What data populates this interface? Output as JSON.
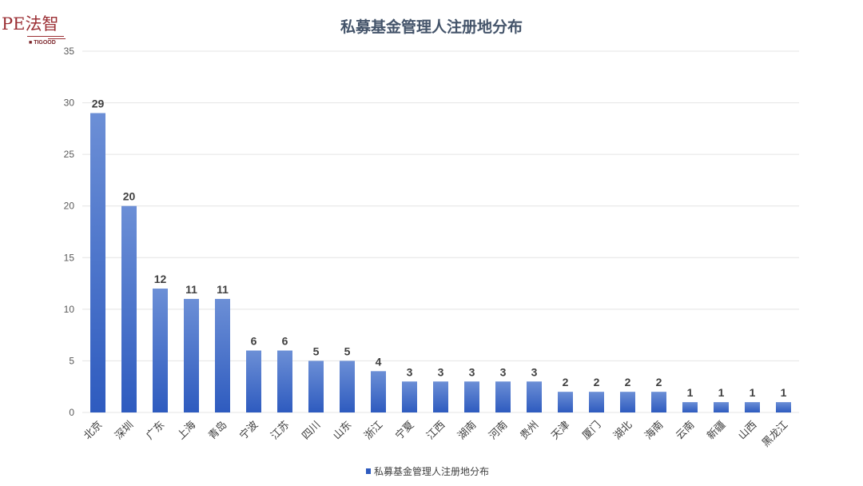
{
  "logo": {
    "text": "PE法智",
    "subtext": "TIGOOD"
  },
  "chart_data": {
    "type": "bar",
    "title": "私募基金管理人注册地分布",
    "categories": [
      "北京",
      "深圳",
      "广东",
      "上海",
      "青岛",
      "宁波",
      "江苏",
      "四川",
      "山东",
      "浙江",
      "宁夏",
      "江西",
      "湖南",
      "河南",
      "贵州",
      "天津",
      "厦门",
      "湖北",
      "海南",
      "云南",
      "新疆",
      "山西",
      "黑龙江"
    ],
    "series": [
      {
        "name": "私募基金管理人注册地分布",
        "values": [
          29,
          20,
          12,
          11,
          11,
          6,
          6,
          5,
          5,
          4,
          3,
          3,
          3,
          3,
          3,
          2,
          2,
          2,
          2,
          1,
          1,
          1,
          1
        ]
      }
    ],
    "ylim": [
      0,
      35
    ],
    "yticks": [
      0,
      5,
      10,
      15,
      20,
      25,
      30,
      35
    ],
    "grid": true,
    "legend": "bottom",
    "data_labels": true,
    "colors": {
      "bar_top": "#6c8fd6",
      "bar_bottom": "#2e5bbf",
      "grid": "#e4e4e4",
      "title": "#44546a"
    }
  }
}
